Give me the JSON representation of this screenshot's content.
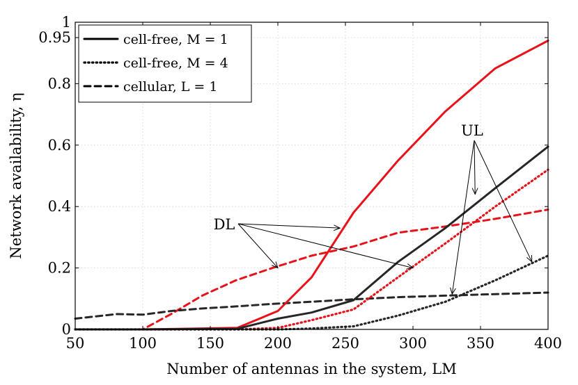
{
  "chart_data": {
    "type": "line",
    "title": "",
    "xlabel": "Number of antennas in the system, LM",
    "ylabel": "Network availability, η",
    "xlim": [
      50,
      400
    ],
    "ylim": [
      0,
      1
    ],
    "x_ticks": [
      "50",
      "100",
      "150",
      "200",
      "250",
      "300",
      "350",
      "400"
    ],
    "y_ticks": [
      "0",
      "0.2",
      "0.4",
      "0.6",
      "0.8",
      "0.95",
      "1"
    ],
    "grid": true,
    "legend_position": "top-left",
    "legend": [
      {
        "label": "cell-free, M = 1",
        "style": "solid"
      },
      {
        "label": "cell-free, M = 4",
        "style": "dotted"
      },
      {
        "label": "cellular, L = 1",
        "style": "dashed"
      }
    ],
    "colors": {
      "DL": "#e8121a",
      "UL": "#262626"
    },
    "series": [
      {
        "scheme": "cell-free, M = 1",
        "link": "DL",
        "x": [
          50,
          100,
          170,
          200,
          225,
          256,
          289,
          324,
          361,
          400
        ],
        "y": [
          0,
          0,
          0.005,
          0.06,
          0.17,
          0.38,
          0.55,
          0.71,
          0.85,
          0.94
        ]
      },
      {
        "scheme": "cell-free, M = 1",
        "link": "UL",
        "x": [
          50,
          100,
          170,
          200,
          225,
          256,
          289,
          324,
          361,
          400
        ],
        "y": [
          0,
          0,
          0.002,
          0.035,
          0.055,
          0.095,
          0.22,
          0.33,
          0.46,
          0.595
        ]
      },
      {
        "scheme": "cell-free, M = 4",
        "link": "DL",
        "x": [
          50,
          100,
          170,
          200,
          225,
          256,
          289,
          324,
          361,
          400
        ],
        "y": [
          0,
          0,
          0,
          0.005,
          0.03,
          0.065,
          0.17,
          0.28,
          0.4,
          0.52
        ]
      },
      {
        "scheme": "cell-free, M = 4",
        "link": "UL",
        "x": [
          50,
          100,
          170,
          200,
          225,
          256,
          289,
          324,
          361,
          400
        ],
        "y": [
          0,
          0,
          0,
          0,
          0.003,
          0.01,
          0.045,
          0.09,
          0.16,
          0.24
        ]
      },
      {
        "scheme": "cellular, L = 1",
        "link": "DL",
        "x": [
          50,
          81,
          100,
          121,
          144,
          169,
          196,
          225,
          256,
          289,
          324,
          361,
          400
        ],
        "y": [
          0,
          0,
          0,
          0.05,
          0.11,
          0.16,
          0.2,
          0.24,
          0.27,
          0.315,
          0.335,
          0.36,
          0.39
        ]
      },
      {
        "scheme": "cellular, L = 1",
        "link": "UL",
        "x": [
          50,
          81,
          100,
          121,
          144,
          169,
          196,
          225,
          256,
          289,
          324,
          361,
          400
        ],
        "y": [
          0.035,
          0.05,
          0.048,
          0.06,
          0.068,
          0.075,
          0.083,
          0.09,
          0.098,
          0.105,
          0.11,
          0.115,
          0.12
        ]
      }
    ],
    "annotations": [
      {
        "text": "DL",
        "targets": [
          [
            246,
            0.33
          ],
          [
            300,
            0.2
          ],
          [
            200,
            0.2
          ]
        ]
      },
      {
        "text": "UL",
        "targets": [
          [
            346,
            0.44
          ],
          [
            329,
            0.115
          ],
          [
            388,
            0.22
          ]
        ]
      }
    ]
  }
}
